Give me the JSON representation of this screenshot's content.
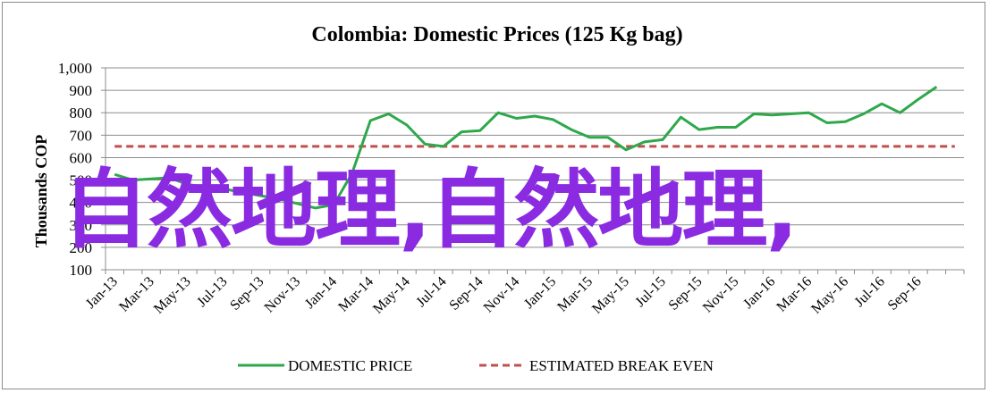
{
  "chart_data": {
    "type": "line",
    "title": "Colombia:  Domestic Prices (125 Kg bag)",
    "ylabel": "Thousands COP",
    "ylim": [
      100,
      1000
    ],
    "yticks": [
      "1,000",
      "900",
      "800",
      "700",
      "600",
      "500",
      "400",
      "300",
      "200",
      "100"
    ],
    "grid": true,
    "legend_position": "bottom",
    "x": [
      "Jan-13",
      "Feb-13",
      "Mar-13",
      "Apr-13",
      "May-13",
      "Jun-13",
      "Jul-13",
      "Aug-13",
      "Sep-13",
      "Oct-13",
      "Nov-13",
      "Dec-13",
      "Jan-14",
      "Feb-14",
      "Mar-14",
      "Apr-14",
      "May-14",
      "Jun-14",
      "Jul-14",
      "Aug-14",
      "Sep-14",
      "Oct-14",
      "Nov-14",
      "Dec-14",
      "Jan-15",
      "Feb-15",
      "Mar-15",
      "Apr-15",
      "May-15",
      "Jun-15",
      "Jul-15",
      "Aug-15",
      "Sep-15",
      "Oct-15",
      "Nov-15",
      "Dec-15",
      "Jan-16",
      "Feb-16",
      "Mar-16",
      "Apr-16",
      "May-16",
      "Jun-16",
      "Jul-16",
      "Aug-16",
      "Sep-16",
      "Oct-16",
      "Nov-16"
    ],
    "xtick_labels": [
      "Jan-13",
      "Mar-13",
      "May-13",
      "Jul-13",
      "Sep-13",
      "Nov-13",
      "Jan-14",
      "Mar-14",
      "May-14",
      "Jul-14",
      "Sep-14",
      "Nov-14",
      "Jan-15",
      "Mar-15",
      "May-15",
      "Jul-15",
      "Sep-15",
      "Nov-15",
      "Jan-16",
      "Mar-16",
      "May-16",
      "Jul-16",
      "Sep-16"
    ],
    "series": [
      {
        "name": "DOMESTIC PRICE",
        "color": "#2ea84a",
        "style": "solid",
        "values": [
          525,
          500,
          505,
          510,
          480,
          470,
          460,
          445,
          430,
          415,
          395,
          375,
          390,
          530,
          765,
          795,
          745,
          660,
          650,
          715,
          720,
          800,
          775,
          785,
          770,
          725,
          690,
          690,
          635,
          670,
          680,
          780,
          725,
          735,
          735,
          795,
          790,
          795,
          800,
          755,
          760,
          795,
          840,
          800,
          860,
          915,
          null
        ]
      },
      {
        "name": "ESTIMATED BREAK EVEN",
        "color": "#c0504d",
        "style": "dashed",
        "values": [
          650,
          650,
          650,
          650,
          650,
          650,
          650,
          650,
          650,
          650,
          650,
          650,
          650,
          650,
          650,
          650,
          650,
          650,
          650,
          650,
          650,
          650,
          650,
          650,
          650,
          650,
          650,
          650,
          650,
          650,
          650,
          650,
          650,
          650,
          650,
          650,
          650,
          650,
          650,
          650,
          650,
          650,
          650,
          650,
          650,
          650,
          650
        ]
      }
    ]
  },
  "overlay": {
    "watermark_text": "自然地理,自然地理,"
  }
}
